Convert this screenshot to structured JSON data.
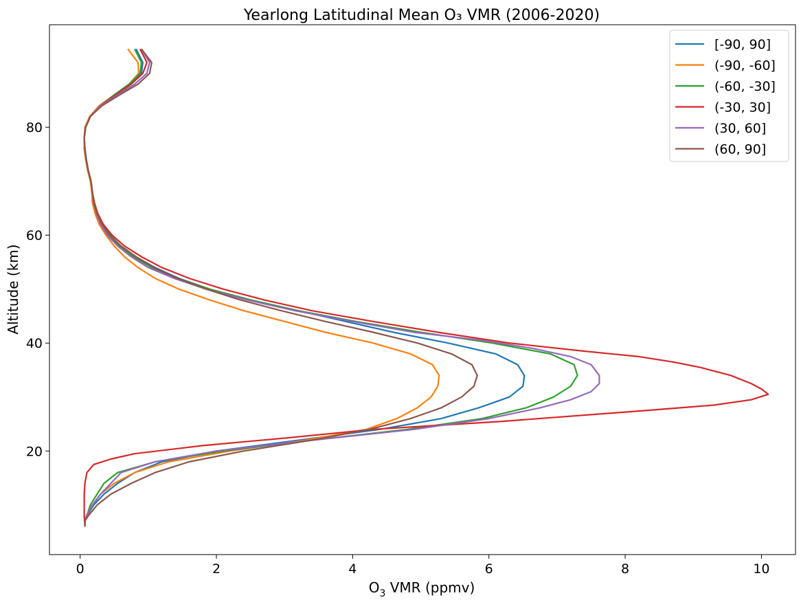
{
  "chart_data": {
    "type": "line",
    "title": "Yearlong Latitudinal Mean O₃ VMR (2006-2020)",
    "xlabel_main": "O",
    "xlabel_sub": "3",
    "xlabel_rest": " VMR (ppmv)",
    "ylabel": "Altitude (km)",
    "xlim": [
      -0.45,
      10.5
    ],
    "ylim": [
      0.8,
      99
    ],
    "x_ticks": [
      0,
      2,
      4,
      6,
      8,
      10
    ],
    "y_ticks": [
      20,
      40,
      60,
      80
    ],
    "grid": false,
    "legend_position": "top-right",
    "series": [
      {
        "name": "[-90, 90]",
        "color": "#1f77b4",
        "points": [
          [
            0.07,
            6
          ],
          [
            0.07,
            7
          ],
          [
            0.1,
            8
          ],
          [
            0.2,
            10
          ],
          [
            0.35,
            12
          ],
          [
            0.55,
            14
          ],
          [
            0.8,
            16
          ],
          [
            1.2,
            18
          ],
          [
            2,
            20
          ],
          [
            3.2,
            22
          ],
          [
            4.4,
            24
          ],
          [
            5.3,
            26
          ],
          [
            5.85,
            28
          ],
          [
            6.3,
            30
          ],
          [
            6.5,
            32
          ],
          [
            6.52,
            34
          ],
          [
            6.42,
            36
          ],
          [
            6.1,
            38
          ],
          [
            5.4,
            40
          ],
          [
            4.6,
            42
          ],
          [
            3.9,
            44
          ],
          [
            3.2,
            46
          ],
          [
            2.5,
            48
          ],
          [
            1.9,
            50
          ],
          [
            1.45,
            52
          ],
          [
            1.1,
            54
          ],
          [
            0.82,
            56
          ],
          [
            0.6,
            58
          ],
          [
            0.42,
            60
          ],
          [
            0.3,
            62
          ],
          [
            0.24,
            64
          ],
          [
            0.2,
            66
          ],
          [
            0.18,
            68
          ],
          [
            0.16,
            70
          ],
          [
            0.12,
            72
          ],
          [
            0.09,
            74
          ],
          [
            0.07,
            76
          ],
          [
            0.06,
            78
          ],
          [
            0.08,
            80
          ],
          [
            0.15,
            82
          ],
          [
            0.3,
            84
          ],
          [
            0.52,
            86
          ],
          [
            0.75,
            88
          ],
          [
            0.9,
            90
          ],
          [
            0.92,
            92
          ],
          [
            0.82,
            94.5
          ]
        ]
      },
      {
        "name": "(-90, -60]",
        "color": "#ff7f0e",
        "points": [
          [
            0.07,
            6
          ],
          [
            0.07,
            7
          ],
          [
            0.09,
            8
          ],
          [
            0.18,
            10
          ],
          [
            0.3,
            12
          ],
          [
            0.5,
            14
          ],
          [
            0.8,
            16
          ],
          [
            1.3,
            18
          ],
          [
            2.2,
            20
          ],
          [
            3.3,
            22
          ],
          [
            4.2,
            24
          ],
          [
            4.65,
            26
          ],
          [
            4.95,
            28
          ],
          [
            5.15,
            30
          ],
          [
            5.25,
            32
          ],
          [
            5.27,
            34
          ],
          [
            5.17,
            36
          ],
          [
            4.85,
            38
          ],
          [
            4.3,
            40
          ],
          [
            3.6,
            42
          ],
          [
            3,
            44
          ],
          [
            2.4,
            46
          ],
          [
            1.9,
            48
          ],
          [
            1.45,
            50
          ],
          [
            1.1,
            52
          ],
          [
            0.85,
            54
          ],
          [
            0.65,
            56
          ],
          [
            0.5,
            58
          ],
          [
            0.38,
            60
          ],
          [
            0.28,
            62
          ],
          [
            0.22,
            64
          ],
          [
            0.18,
            66
          ],
          [
            0.17,
            68
          ],
          [
            0.15,
            70
          ],
          [
            0.11,
            72
          ],
          [
            0.08,
            74
          ],
          [
            0.06,
            76
          ],
          [
            0.06,
            78
          ],
          [
            0.07,
            80
          ],
          [
            0.14,
            82
          ],
          [
            0.28,
            84
          ],
          [
            0.5,
            86
          ],
          [
            0.72,
            88
          ],
          [
            0.86,
            90
          ],
          [
            0.85,
            92
          ],
          [
            0.7,
            94.5
          ]
        ]
      },
      {
        "name": "(-60, -30]",
        "color": "#2ca02c",
        "points": [
          [
            0.07,
            6
          ],
          [
            0.07,
            7
          ],
          [
            0.1,
            8
          ],
          [
            0.15,
            10
          ],
          [
            0.25,
            12
          ],
          [
            0.35,
            14
          ],
          [
            0.55,
            16
          ],
          [
            1.1,
            18
          ],
          [
            2.1,
            20
          ],
          [
            3.4,
            22
          ],
          [
            4.8,
            24
          ],
          [
            5.9,
            26
          ],
          [
            6.55,
            28
          ],
          [
            6.95,
            30
          ],
          [
            7.2,
            32
          ],
          [
            7.3,
            34
          ],
          [
            7.25,
            36
          ],
          [
            6.9,
            38
          ],
          [
            6.05,
            40
          ],
          [
            5,
            42
          ],
          [
            4.05,
            44
          ],
          [
            3.2,
            46
          ],
          [
            2.5,
            48
          ],
          [
            1.9,
            50
          ],
          [
            1.42,
            52
          ],
          [
            1.05,
            54
          ],
          [
            0.78,
            56
          ],
          [
            0.57,
            58
          ],
          [
            0.42,
            60
          ],
          [
            0.31,
            62
          ],
          [
            0.24,
            64
          ],
          [
            0.2,
            66
          ],
          [
            0.18,
            68
          ],
          [
            0.16,
            70
          ],
          [
            0.12,
            72
          ],
          [
            0.09,
            74
          ],
          [
            0.07,
            76
          ],
          [
            0.06,
            78
          ],
          [
            0.08,
            80
          ],
          [
            0.15,
            82
          ],
          [
            0.3,
            84
          ],
          [
            0.5,
            86
          ],
          [
            0.72,
            88
          ],
          [
            0.88,
            90
          ],
          [
            0.9,
            92
          ],
          [
            0.8,
            94.5
          ]
        ]
      },
      {
        "name": "(-30, 30]",
        "color": "#d62728",
        "points": [
          [
            0.07,
            6
          ],
          [
            0.06,
            8
          ],
          [
            0.06,
            10
          ],
          [
            0.06,
            12
          ],
          [
            0.07,
            14
          ],
          [
            0.1,
            16
          ],
          [
            0.2,
            17.5
          ],
          [
            0.45,
            18.5
          ],
          [
            0.8,
            19.5
          ],
          [
            1.8,
            21
          ],
          [
            3.1,
            22.5
          ],
          [
            4.3,
            24
          ],
          [
            6.2,
            25.5
          ],
          [
            8.3,
            27.5
          ],
          [
            9.3,
            28.5
          ],
          [
            9.85,
            29.5
          ],
          [
            10.1,
            30.5
          ],
          [
            10.0,
            31.5
          ],
          [
            9.85,
            32.5
          ],
          [
            9.55,
            34
          ],
          [
            9.1,
            35.5
          ],
          [
            8.7,
            36.5
          ],
          [
            8.2,
            37.5
          ],
          [
            7.4,
            38.5
          ],
          [
            6.3,
            40
          ],
          [
            5.25,
            42
          ],
          [
            4.3,
            44
          ],
          [
            3.4,
            46
          ],
          [
            2.7,
            48
          ],
          [
            2.1,
            50
          ],
          [
            1.6,
            52
          ],
          [
            1.2,
            54
          ],
          [
            0.9,
            56
          ],
          [
            0.65,
            58
          ],
          [
            0.47,
            60
          ],
          [
            0.34,
            62
          ],
          [
            0.26,
            64
          ],
          [
            0.21,
            66
          ],
          [
            0.18,
            68
          ],
          [
            0.16,
            70
          ],
          [
            0.12,
            72
          ],
          [
            0.09,
            74
          ],
          [
            0.07,
            76
          ],
          [
            0.06,
            78
          ],
          [
            0.08,
            80
          ],
          [
            0.15,
            82
          ],
          [
            0.3,
            84
          ],
          [
            0.52,
            86
          ],
          [
            0.75,
            88
          ],
          [
            0.92,
            90
          ],
          [
            0.98,
            92
          ],
          [
            0.88,
            94.5
          ]
        ]
      },
      {
        "name": "(30, 60]",
        "color": "#9467bd",
        "points": [
          [
            0.07,
            6
          ],
          [
            0.07,
            7
          ],
          [
            0.1,
            8
          ],
          [
            0.18,
            10
          ],
          [
            0.3,
            12
          ],
          [
            0.45,
            14
          ],
          [
            0.6,
            16
          ],
          [
            1.1,
            18
          ],
          [
            2,
            20
          ],
          [
            3.4,
            22
          ],
          [
            4.9,
            24
          ],
          [
            6,
            26
          ],
          [
            6.75,
            28
          ],
          [
            7.2,
            29.5
          ],
          [
            7.5,
            31
          ],
          [
            7.62,
            32.5
          ],
          [
            7.62,
            34
          ],
          [
            7.5,
            36
          ],
          [
            7.2,
            37.5
          ],
          [
            6.65,
            39
          ],
          [
            5.9,
            40.5
          ],
          [
            4.9,
            42
          ],
          [
            4,
            44
          ],
          [
            3.15,
            46
          ],
          [
            2.45,
            48
          ],
          [
            1.85,
            50
          ],
          [
            1.38,
            52
          ],
          [
            1,
            54
          ],
          [
            0.75,
            56
          ],
          [
            0.55,
            58
          ],
          [
            0.4,
            60
          ],
          [
            0.3,
            62
          ],
          [
            0.24,
            64
          ],
          [
            0.2,
            66
          ],
          [
            0.18,
            68
          ],
          [
            0.16,
            70
          ],
          [
            0.12,
            72
          ],
          [
            0.09,
            74
          ],
          [
            0.07,
            76
          ],
          [
            0.06,
            78
          ],
          [
            0.08,
            80
          ],
          [
            0.15,
            82
          ],
          [
            0.3,
            84
          ],
          [
            0.55,
            86
          ],
          [
            0.8,
            88
          ],
          [
            0.98,
            90
          ],
          [
            1.02,
            92
          ],
          [
            0.9,
            94.5
          ]
        ]
      },
      {
        "name": "(60, 90]",
        "color": "#8c564b",
        "points": [
          [
            0.07,
            6
          ],
          [
            0.07,
            7
          ],
          [
            0.12,
            8
          ],
          [
            0.25,
            10
          ],
          [
            0.45,
            12
          ],
          [
            0.75,
            14
          ],
          [
            1.1,
            16
          ],
          [
            1.6,
            18
          ],
          [
            2.4,
            20
          ],
          [
            3.4,
            22
          ],
          [
            4.25,
            24
          ],
          [
            4.85,
            26
          ],
          [
            5.3,
            28
          ],
          [
            5.6,
            30
          ],
          [
            5.78,
            32
          ],
          [
            5.83,
            34
          ],
          [
            5.75,
            36
          ],
          [
            5.45,
            38
          ],
          [
            4.95,
            40
          ],
          [
            4.3,
            42
          ],
          [
            3.6,
            44
          ],
          [
            2.95,
            46
          ],
          [
            2.35,
            48
          ],
          [
            1.85,
            50
          ],
          [
            1.42,
            52
          ],
          [
            1.08,
            54
          ],
          [
            0.82,
            56
          ],
          [
            0.6,
            58
          ],
          [
            0.44,
            60
          ],
          [
            0.32,
            62
          ],
          [
            0.25,
            64
          ],
          [
            0.2,
            66
          ],
          [
            0.18,
            68
          ],
          [
            0.16,
            70
          ],
          [
            0.12,
            72
          ],
          [
            0.09,
            74
          ],
          [
            0.07,
            76
          ],
          [
            0.06,
            78
          ],
          [
            0.08,
            80
          ],
          [
            0.15,
            82
          ],
          [
            0.32,
            84
          ],
          [
            0.58,
            86
          ],
          [
            0.85,
            88
          ],
          [
            1.02,
            90
          ],
          [
            1.05,
            92
          ],
          [
            0.9,
            94.5
          ]
        ]
      }
    ]
  }
}
